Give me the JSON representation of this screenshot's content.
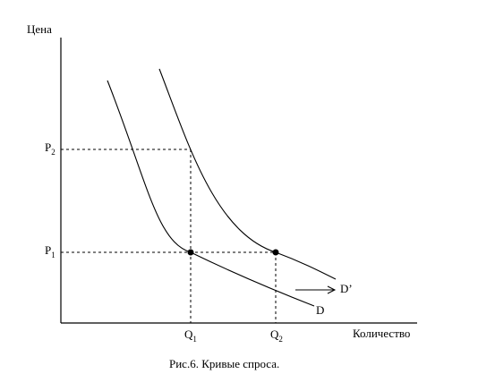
{
  "figure": {
    "y_axis_label": "Цена",
    "x_axis_label": "Количество",
    "caption": "Рис.6. Кривые спроса.",
    "price_labels": {
      "p2": {
        "base": "P",
        "sub": "2"
      },
      "p1": {
        "base": "P",
        "sub": "1"
      }
    },
    "quantity_labels": {
      "q1": {
        "base": "Q",
        "sub": "1"
      },
      "q2": {
        "base": "Q",
        "sub": "2"
      }
    },
    "curve_labels": {
      "original": "D",
      "shifted": "D’"
    }
  }
}
